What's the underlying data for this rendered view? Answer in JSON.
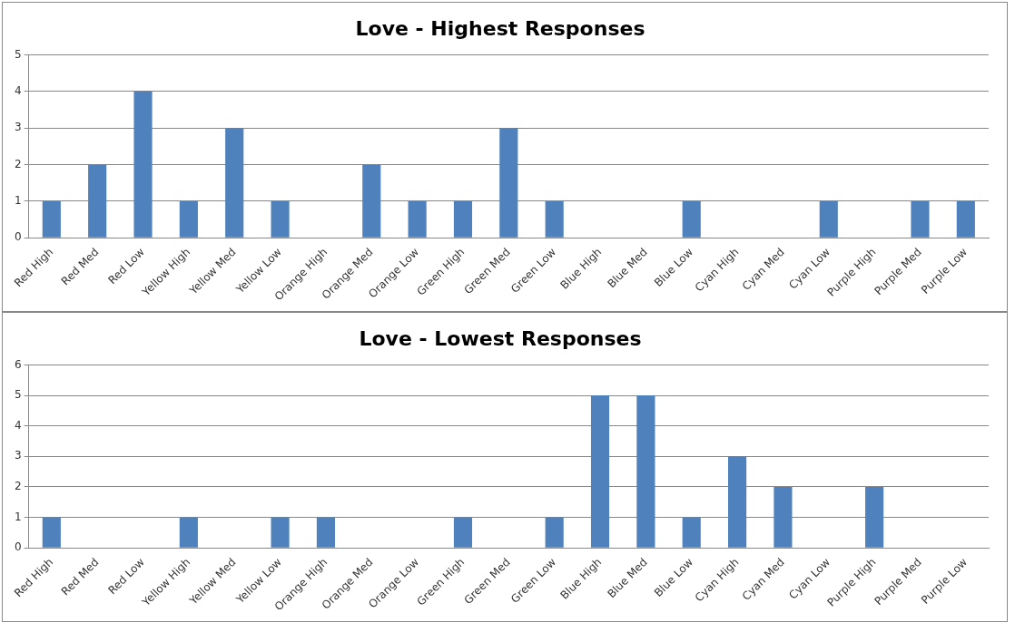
{
  "chart_data": [
    {
      "type": "bar",
      "title": "Love - Highest Responses",
      "categories": [
        "Red High",
        "Red Med",
        "Red Low",
        "Yellow High",
        "Yellow Med",
        "Yellow Low",
        "Orange High",
        "Orange Med",
        "Orange Low",
        "Green High",
        "Green Med",
        "Green Low",
        "Blue High",
        "Blue Med",
        "Blue Low",
        "Cyan High",
        "Cyan Med",
        "Cyan Low",
        "Purple High",
        "Purple Med",
        "Purple Low"
      ],
      "values": [
        1,
        2,
        4,
        1,
        3,
        1,
        0,
        2,
        1,
        1,
        3,
        1,
        0,
        0,
        1,
        0,
        0,
        1,
        0,
        1,
        1
      ],
      "color": "#4f81bd",
      "ylim": [
        0,
        5
      ],
      "yticks": [
        0,
        1,
        2,
        3,
        4,
        5
      ],
      "grid": "y",
      "legend": false
    },
    {
      "type": "bar",
      "title": "Love - Lowest Responses",
      "categories": [
        "Red High",
        "Red Med",
        "Red Low",
        "Yellow High",
        "Yellow Med",
        "Yellow Low",
        "Orange High",
        "Orange Med",
        "Orange Low",
        "Green High",
        "Green Med",
        "Green Low",
        "Blue High",
        "Blue Med",
        "Blue Low",
        "Cyan High",
        "Cyan Med",
        "Cyan Low",
        "Purple High",
        "Purple Med",
        "Purple Low"
      ],
      "values": [
        1,
        0,
        0,
        1,
        0,
        1,
        1,
        0,
        0,
        1,
        0,
        1,
        5,
        5,
        1,
        3,
        2,
        0,
        2,
        0,
        0
      ],
      "color": "#4f81bd",
      "ylim": [
        0,
        6
      ],
      "yticks": [
        0,
        1,
        2,
        3,
        4,
        5,
        6
      ],
      "grid": "y",
      "legend": false
    }
  ]
}
